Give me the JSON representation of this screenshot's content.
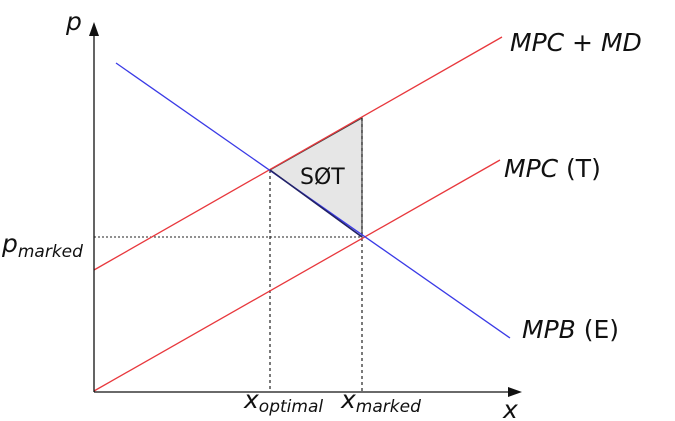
{
  "axes": {
    "y_label": "p",
    "x_label": "x"
  },
  "curves": {
    "mpc_md": {
      "label_main": "MPC",
      "label_sep": " + ",
      "label_extra": "MD",
      "color": "#e8383d"
    },
    "mpc": {
      "label_main": "MPC",
      "label_extra": " (T)",
      "color": "#e8383d"
    },
    "mpb": {
      "label_main": "MPB",
      "label_extra": " (E)",
      "color": "#3a3ae6"
    }
  },
  "prices": {
    "market": {
      "main": "p",
      "sub": "marked"
    }
  },
  "quantities": {
    "optimal": {
      "main": "x",
      "sub": "optimal"
    },
    "market": {
      "main": "x",
      "sub": "marked"
    }
  },
  "deadweight": {
    "label": "SØT",
    "fill": "#e6e6e6",
    "edge": "#444444"
  },
  "colors": {
    "axis": "#111111",
    "guide": "#222222"
  }
}
